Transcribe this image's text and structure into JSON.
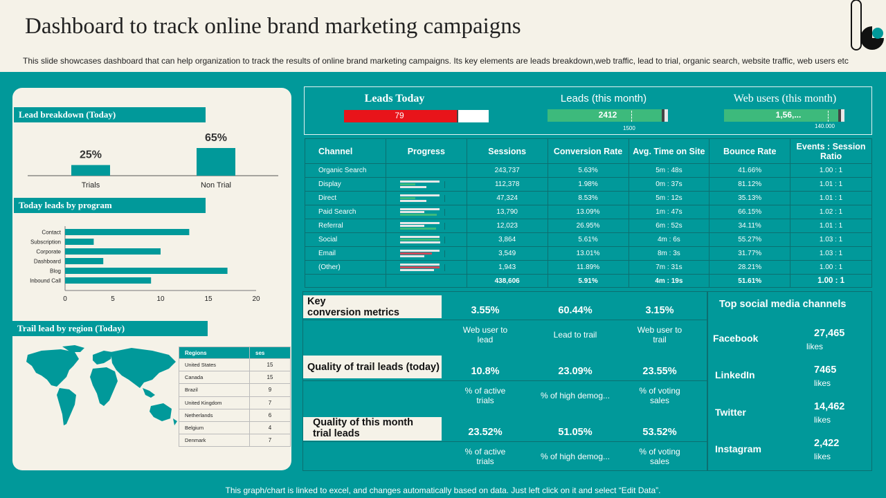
{
  "header": {
    "title": "Dashboard to track online brand marketing campaigns",
    "subtitle": "This slide showcases dashboard that can help organization to track the results of online brand marketing campaigns. Its key elements are leads breakdown,web traffic, lead to trial, organic search, website traffic, web users etc"
  },
  "footer": "This graph/chart is linked to excel, and changes automatically based on data. Just left click on it and select “Edit Data”.",
  "lead_breakdown": {
    "title": "Lead breakdown (Today)",
    "bars": [
      {
        "label": "Trials",
        "value_label": "25%",
        "value": 25
      },
      {
        "label": "Non Trial",
        "value_label": "65%",
        "value": 65
      }
    ]
  },
  "leads_by_program": {
    "title": "Today leads by program",
    "ticks": [
      "0",
      "5",
      "10",
      "15",
      "20"
    ]
  },
  "chart_data": {
    "type": "bar",
    "orientation": "horizontal",
    "categories": [
      "Contact",
      "Subscription",
      "Corporate",
      "Dashboard",
      "Blog",
      "Inbound Call"
    ],
    "values": [
      13,
      3,
      10,
      4,
      17,
      9
    ],
    "xlim": [
      0,
      20
    ]
  },
  "region": {
    "title": "Trail lead by region (Today)",
    "headers": [
      "Regions",
      "ses"
    ],
    "rows": [
      [
        "United States",
        "15"
      ],
      [
        "Canada",
        "15"
      ],
      [
        "Brazil",
        "9"
      ],
      [
        "United Kingdom",
        "7"
      ],
      [
        "Netherlands",
        "6"
      ],
      [
        "Belgium",
        "4"
      ],
      [
        "Denmark",
        "7"
      ]
    ]
  },
  "kpis": {
    "leads_today": {
      "label": "Leads Today",
      "value": "79",
      "fill_fraction": 0.79,
      "color": "#e8141a"
    },
    "leads_month": {
      "label": "Leads (this month)",
      "value": "2412",
      "target": "1500",
      "fill_fraction": 0.97,
      "color": "#3dba7c"
    },
    "web_users": {
      "label": "Web users (this month)",
      "value": "1,56,...",
      "target": "140.000",
      "fill_fraction": 0.97,
      "color": "#3dba7c"
    }
  },
  "channels": {
    "headers": [
      "Channel",
      "Progress",
      "Sessions",
      "Conversion Rate",
      "Avg. Time on Site",
      "Bounce Rate",
      "Events : Session Ratio"
    ],
    "rows": [
      [
        "Organic Search",
        "",
        "243,737",
        "5.63%",
        "5m : 48s",
        "41.66%",
        "1.00 : 1"
      ],
      [
        "Display",
        "",
        "112,378",
        "1.98%",
        "0m : 37s",
        "81.12%",
        "1.01 : 1"
      ],
      [
        "Direct",
        "",
        "47,324",
        "8.53%",
        "5m : 12s",
        "35.13%",
        "1.01 : 1"
      ],
      [
        "Paid Search",
        "",
        "13,790",
        "13.09%",
        "1m : 47s",
        "66.15%",
        "1.02 : 1"
      ],
      [
        "Referral",
        "",
        "12,023",
        "26.95%",
        "6m : 52s",
        "34.11%",
        "1.01 : 1"
      ],
      [
        "Social",
        "",
        "3,864",
        "5.61%",
        "4m : 6s",
        "55.27%",
        "1.03 : 1"
      ],
      [
        "Email",
        "",
        "3,549",
        "13.01%",
        "8m : 3s",
        "31.77%",
        "1.03 : 1"
      ],
      [
        "(Other)",
        "",
        "1,943",
        "11.89%",
        "7m : 31s",
        "28.21%",
        "1.00 : 1"
      ]
    ],
    "total": [
      "",
      "",
      "438,606",
      "5.91%",
      "4m : 19s",
      "51.61%",
      "1.00 : 1"
    ],
    "progress": [
      null,
      {
        "bars": [
          0.98,
          0.38,
          0.65
        ],
        "colors": [
          "#e8e8e8",
          "#3dba7c",
          "#e8e8e8"
        ]
      },
      {
        "bars": [
          0.98,
          0.38,
          0.65
        ],
        "colors": [
          "#e8e8e8",
          "#3dba7c",
          "#e8e8e8"
        ]
      },
      {
        "bars": [
          0.98,
          0.6,
          0.92
        ],
        "colors": [
          "#e8e8e8",
          "#e8e8e8",
          "#3dba7c"
        ]
      },
      {
        "bars": [
          0.98,
          0.6,
          0.9
        ],
        "colors": [
          "#e8e8e8",
          "#e8e8e8",
          "#3dba7c"
        ]
      },
      {
        "bars": [
          0.98,
          0.98,
          1.0
        ],
        "colors": [
          "#e8e8e8",
          "#3dba7c",
          "#e8e8e8"
        ]
      },
      {
        "bars": [
          0.98,
          0.8,
          0.6
        ],
        "colors": [
          "#e8e8e8",
          "#cc4a5a",
          "#e8e8e8"
        ]
      },
      {
        "bars": [
          0.98,
          0.98,
          0.85
        ],
        "colors": [
          "#e8e8e8",
          "#cc4a5a",
          "#e8e8e8"
        ]
      }
    ]
  },
  "metrics": {
    "rows": [
      {
        "head": "Key\nconversion metrics",
        "values": [
          "3.55%",
          "60.44%",
          "3.15%"
        ],
        "descs": [
          "Web user to\nlead",
          "Lead to trail",
          "Web user to\ntrail"
        ]
      },
      {
        "head": "Quality of trail leads (today)",
        "values": [
          "10.8%",
          "23.09%",
          "23.55%"
        ],
        "descs": [
          "% of active\ntrials",
          "% of high demog...",
          "% of voting\nsales"
        ]
      },
      {
        "head": "Quality of this month\ntrial leads",
        "values": [
          "23.52%",
          "51.05%",
          "53.52%"
        ],
        "descs": [
          "% of active\ntrials",
          "% of high demog...",
          "% of voting\nsales"
        ]
      }
    ]
  },
  "social": {
    "title": "Top social media channels",
    "items": [
      {
        "name": "Facebook",
        "value": "27,465",
        "unit": "likes"
      },
      {
        "name": "LinkedIn",
        "value": "7465",
        "unit": "likes"
      },
      {
        "name": "Twitter",
        "value": "14,462",
        "unit": "likes"
      },
      {
        "name": "Instagram",
        "value": "2,422",
        "unit": "likes"
      }
    ]
  },
  "colors": {
    "teal": "#01999a",
    "cream": "#f5f2e8",
    "red": "#e8141a",
    "green": "#3dba7c"
  }
}
